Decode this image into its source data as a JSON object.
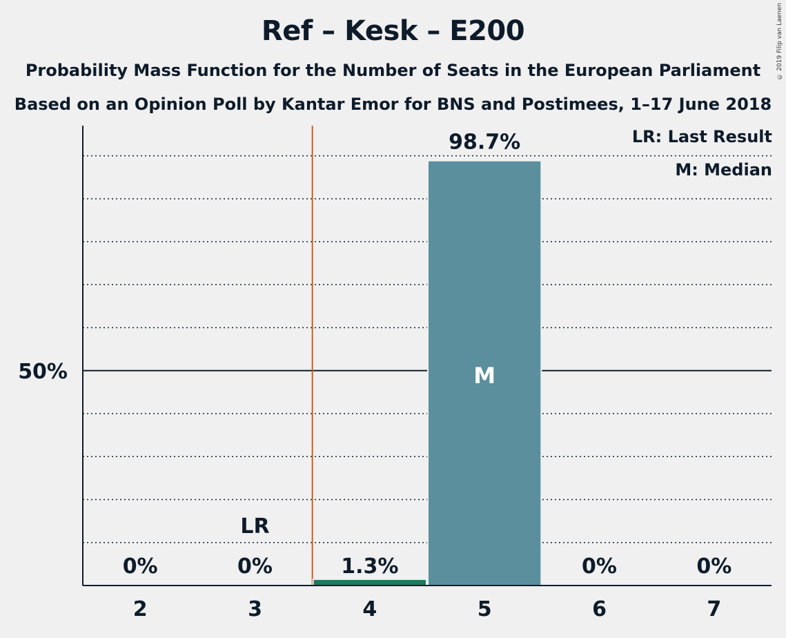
{
  "title": "Ref – Kesk – E200",
  "subtitle_1": "Probability Mass Function for the Number of Seats in the European Parliament",
  "subtitle_2": "Based on an Opinion Poll by Kantar Emor for BNS and Postimees, 1–17 June 2018",
  "copyright": "© 2019 Filip van Laenen",
  "legend": {
    "last_result": "LR: Last Result",
    "median": "M: Median"
  },
  "colors": {
    "bar_main": "#5b8f9e",
    "bar_other": "#1e7a5c",
    "last_result_line": "#c8601a",
    "axis": "#0d1b2a",
    "background": "#f0f0f0"
  },
  "chart_data": {
    "type": "bar",
    "categories": [
      "2",
      "3",
      "4",
      "5",
      "6",
      "7"
    ],
    "values": [
      0,
      0,
      1.3,
      98.7,
      0,
      0
    ],
    "value_labels": [
      "0%",
      "0%",
      "1.3%",
      "98.7%",
      "0%",
      "0%"
    ],
    "ylim": [
      0,
      107
    ],
    "y_ticks": [
      {
        "value": 50,
        "label": "50%"
      }
    ],
    "grid_step": 10,
    "grid": true,
    "last_result": {
      "category": "3",
      "label": "LR"
    },
    "median": {
      "category": "5",
      "label": "M"
    },
    "legend_position": "top-right"
  }
}
